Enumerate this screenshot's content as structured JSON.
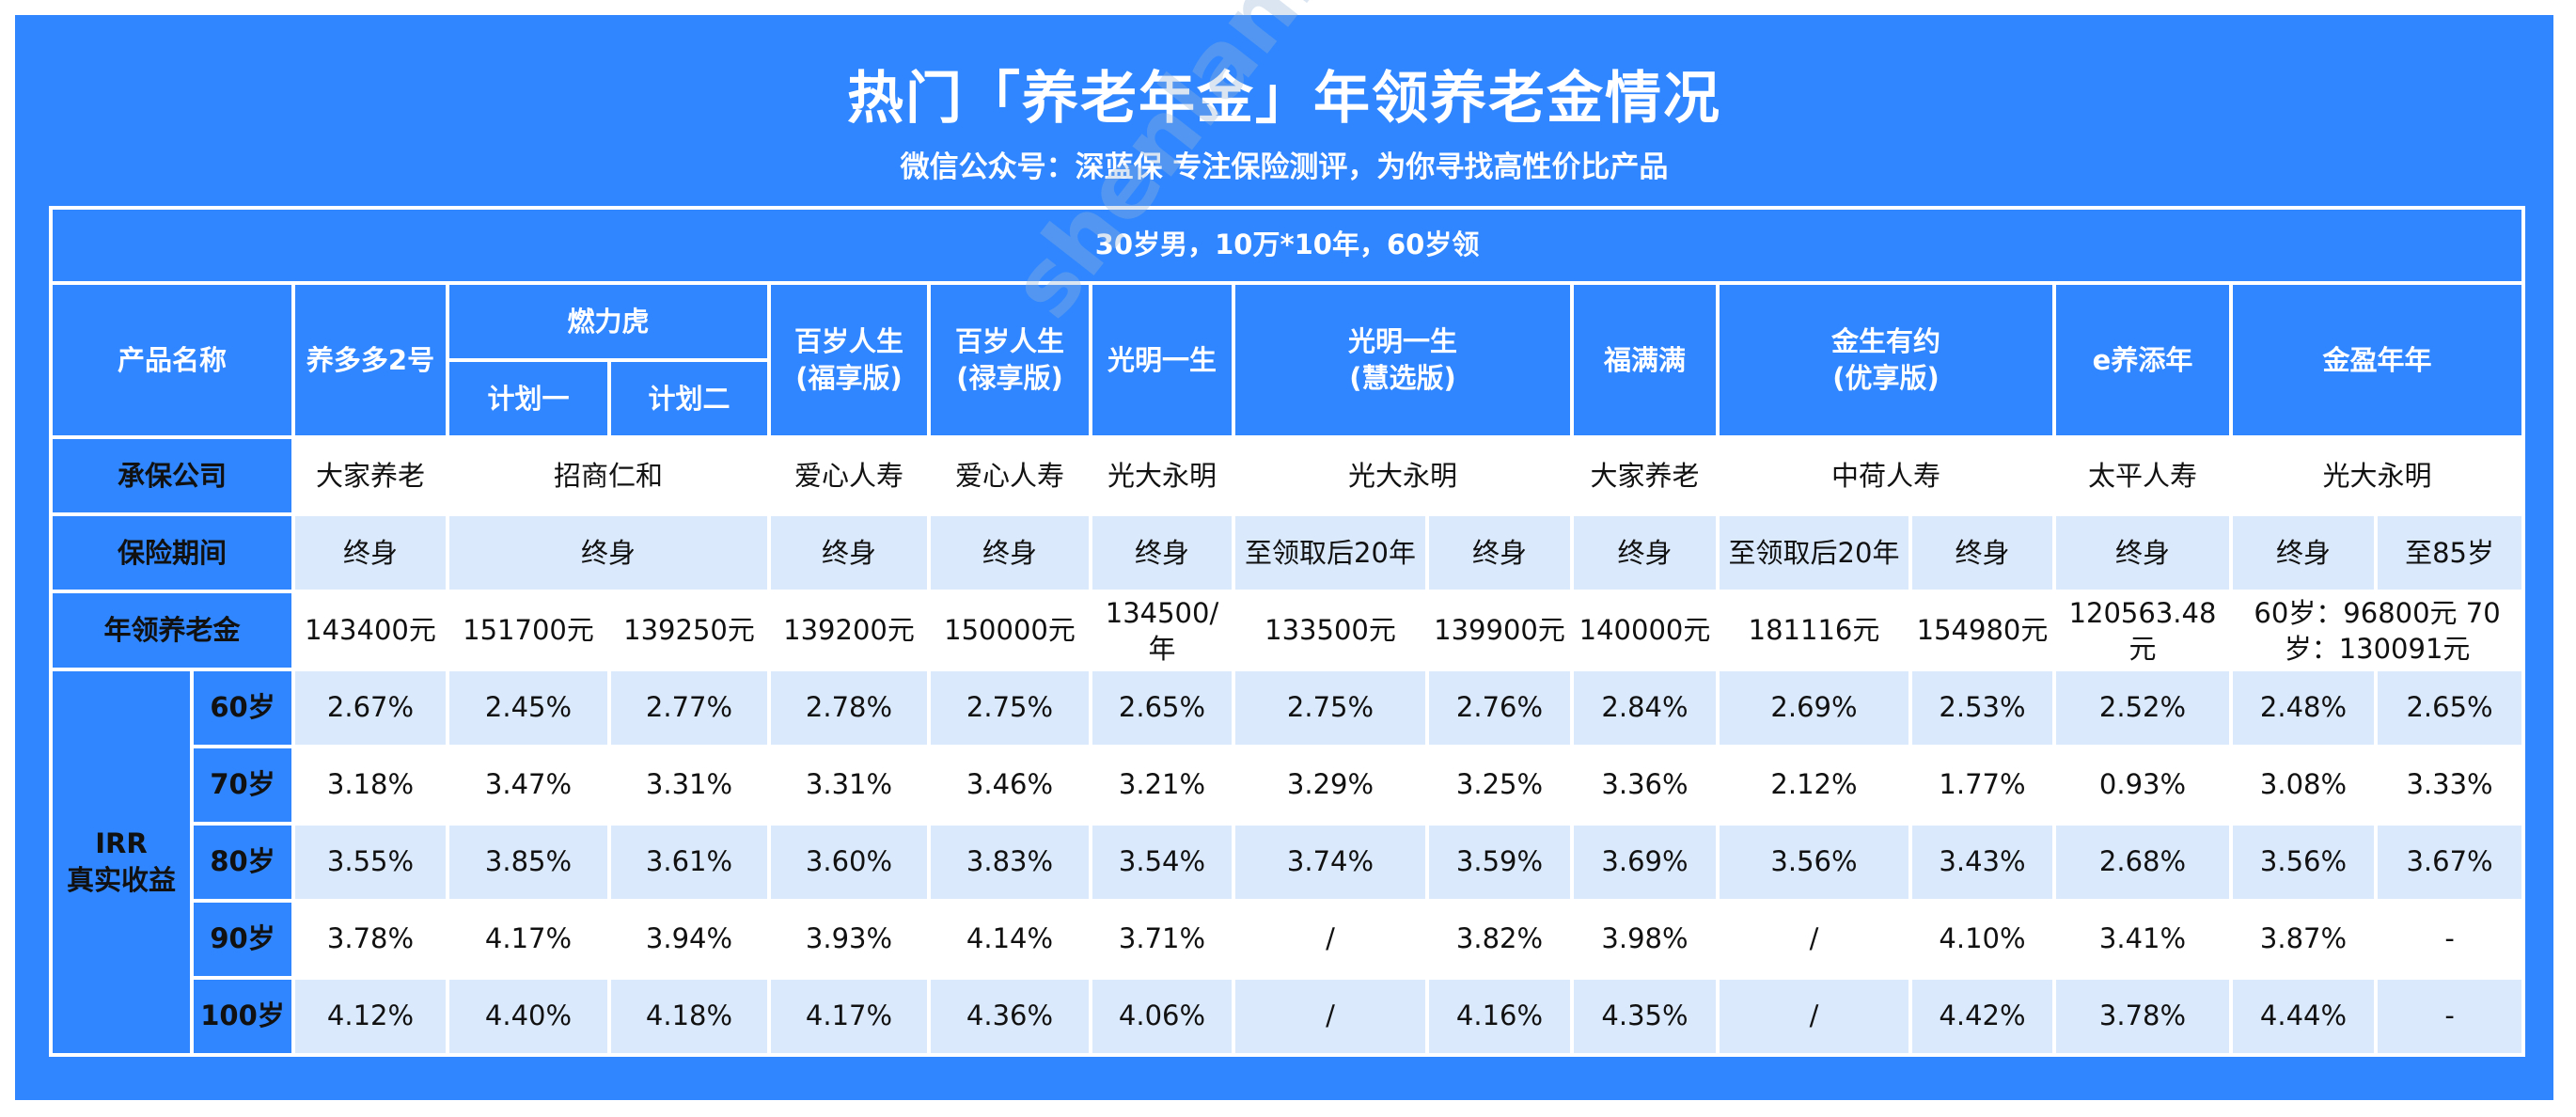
{
  "title": "热门「养老年金」年领养老金情况",
  "subtitle": "微信公众号：深蓝保    专注保险测评，为你寻找高性价比产品",
  "banner": "30岁男，10万*10年，60岁领",
  "row_labels": {
    "product": "产品名称",
    "insurer": "承保公司",
    "term": "保险期间",
    "annual": "年领养老金",
    "irr": [
      "IRR",
      "真实收益"
    ]
  },
  "products": {
    "p1": "养多多2号",
    "p2": "燃力虎",
    "p2_plans": [
      "计划一",
      "计划二"
    ],
    "p3": [
      "百岁人生",
      "(福享版)"
    ],
    "p4": [
      "百岁人生",
      "(禄享版)"
    ],
    "p5": "光明一生",
    "p6": [
      "光明一生",
      "(慧选版)"
    ],
    "p7": "福满满",
    "p8": [
      "金生有约",
      "(优享版)"
    ],
    "p9": "e养添年",
    "p10": "金盈年年"
  },
  "insurers": [
    "大家养老",
    "招商仁和",
    "爱心人寿",
    "爱心人寿",
    "光大永明",
    "光大永明",
    "大家养老",
    "中荷人寿",
    "太平人寿",
    "光大永明"
  ],
  "terms": [
    "终身",
    "终身",
    "终身",
    "终身",
    "终身",
    "至领取后20年",
    "终身",
    "终身",
    "至领取后20年",
    "终身",
    "终身",
    "终身",
    "至85岁"
  ],
  "annual": [
    "143400元",
    "151700元",
    "139250元",
    "139200元",
    "150000元",
    "134500/年",
    "133500元",
    "139900元",
    "140000元",
    "181116元",
    "154980元",
    "120563.48元",
    "60岁：96800元 70岁：130091元"
  ],
  "irr_rows": [
    {
      "age": "60岁",
      "values": [
        "2.67%",
        "2.45%",
        "2.77%",
        "2.78%",
        "2.75%",
        "2.65%",
        "2.75%",
        "2.76%",
        "2.84%",
        "2.69%",
        "2.53%",
        "2.52%",
        "2.48%",
        "2.65%"
      ]
    },
    {
      "age": "70岁",
      "values": [
        "3.18%",
        "3.47%",
        "3.31%",
        "3.31%",
        "3.46%",
        "3.21%",
        "3.29%",
        "3.25%",
        "3.36%",
        "2.12%",
        "1.77%",
        "0.93%",
        "3.08%",
        "3.33%"
      ]
    },
    {
      "age": "80岁",
      "values": [
        "3.55%",
        "3.85%",
        "3.61%",
        "3.60%",
        "3.83%",
        "3.54%",
        "3.74%",
        "3.59%",
        "3.69%",
        "3.56%",
        "3.43%",
        "2.68%",
        "3.56%",
        "3.67%"
      ]
    },
    {
      "age": "90岁",
      "values": [
        "3.78%",
        "4.17%",
        "3.94%",
        "3.93%",
        "4.14%",
        "3.71%",
        "/",
        "3.82%",
        "3.98%",
        "/",
        "4.10%",
        "3.41%",
        "3.87%",
        "-"
      ]
    },
    {
      "age": "100岁",
      "values": [
        "4.12%",
        "4.40%",
        "4.18%",
        "4.17%",
        "4.36%",
        "4.06%",
        "/",
        "4.16%",
        "4.35%",
        "/",
        "4.42%",
        "3.78%",
        "4.44%",
        "-"
      ]
    }
  ],
  "watermark": "shenlanbao.com 中立 专业 诚信",
  "colors": {
    "primary": "#2f86ff",
    "light_row": "#dbe9fc",
    "highlight": "#e8101a"
  }
}
